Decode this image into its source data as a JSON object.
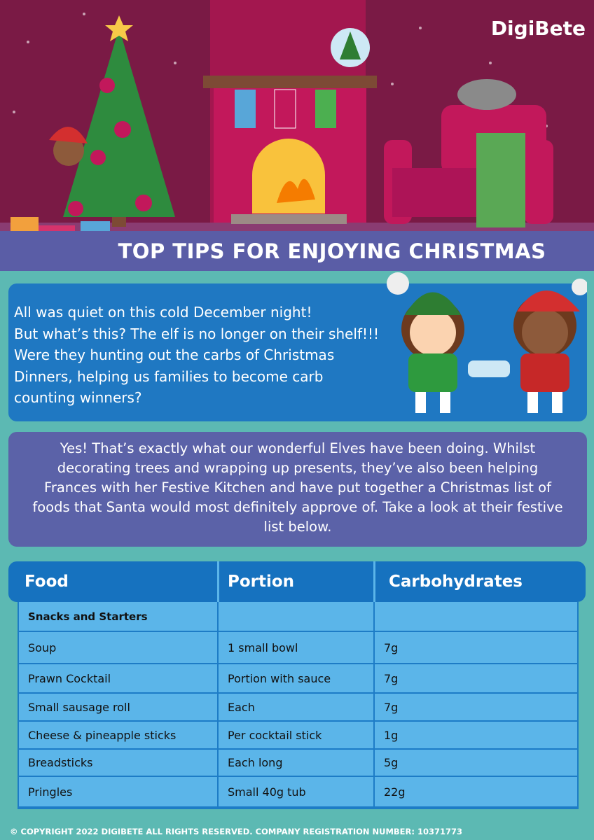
{
  "header": {
    "logo": "DigiBete",
    "title": "TOP TIPS FOR ENJOYING CHRISTMAS"
  },
  "intro": {
    "lines": [
      "All was quiet on this cold December night!",
      "But what’s this? The elf is no longer on their shelf!!!",
      "Were they hunting out the carbs of Christmas",
      "Dinners, helping us families to become carb",
      "counting winners?"
    ]
  },
  "answer": {
    "text": "Yes! That’s exactly what our wonderful Elves have been doing. Whilst decorating trees and wrapping up presents, they’ve also been helping Frances with her Festive Kitchen and have put together a Christmas list of foods that Santa would most definitely approve of. Take a look at their festive list below."
  },
  "table": {
    "header": [
      "Food",
      "Portion",
      "Carbohydrates"
    ],
    "section": "Snacks and Starters",
    "rows": [
      [
        "Soup",
        "1 small bowl",
        "7g"
      ],
      [
        "Prawn Cocktail",
        "Portion with sauce",
        "7g"
      ],
      [
        "Small sausage roll",
        "Each",
        "7g"
      ],
      [
        "Cheese & pineapple sticks",
        "Per cocktail stick",
        "1g"
      ],
      [
        "Breadsticks",
        "Each long",
        "5g"
      ],
      [
        "Pringles",
        "Small 40g tub",
        "22g"
      ]
    ]
  },
  "footer": {
    "copyright": "© COPYRIGHT 2022 DIGIBETE ALL RIGHTS RESERVED. COMPANY REGISTRATION NUMBER: 10371773"
  }
}
